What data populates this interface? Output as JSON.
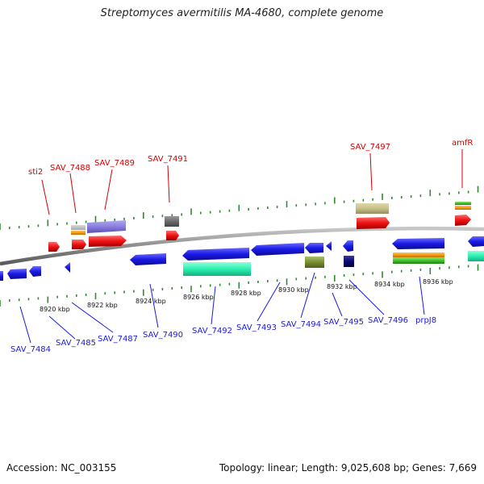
{
  "title": "Streptomyces avermitilis MA-4680, complete genome",
  "footer": {
    "accession": "Accession: NC_003155",
    "topology": "Topology: linear; Length: 9,025,608 bp; Genes: 7,669"
  },
  "colors": {
    "forward_gene": "#ee1111",
    "reverse_gene": "#1a1ae6",
    "label_top": "#d40000",
    "label_bottom": "#1a1ae0",
    "backbone": "#8c8c8c",
    "tick": "#2e8b2e"
  },
  "scale_labels": [
    "8920 kbp",
    "8922 kbp",
    "8924 kbp",
    "8926 kbp",
    "8928 kbp",
    "8930 kbp",
    "8932 kbp",
    "8934 kbp",
    "8936 kbp"
  ],
  "top_labels": [
    "sti2",
    "SAV_7488",
    "SAV_7489",
    "SAV_7491",
    "SAV_7497",
    "amfR"
  ],
  "bottom_labels": [
    "SAV_7484",
    "SAV_7485",
    "SAV_7487",
    "SAV_7490",
    "SAV_7492",
    "SAV_7493",
    "SAV_7494",
    "SAV_7495",
    "SAV_7496",
    "prpJ8"
  ]
}
